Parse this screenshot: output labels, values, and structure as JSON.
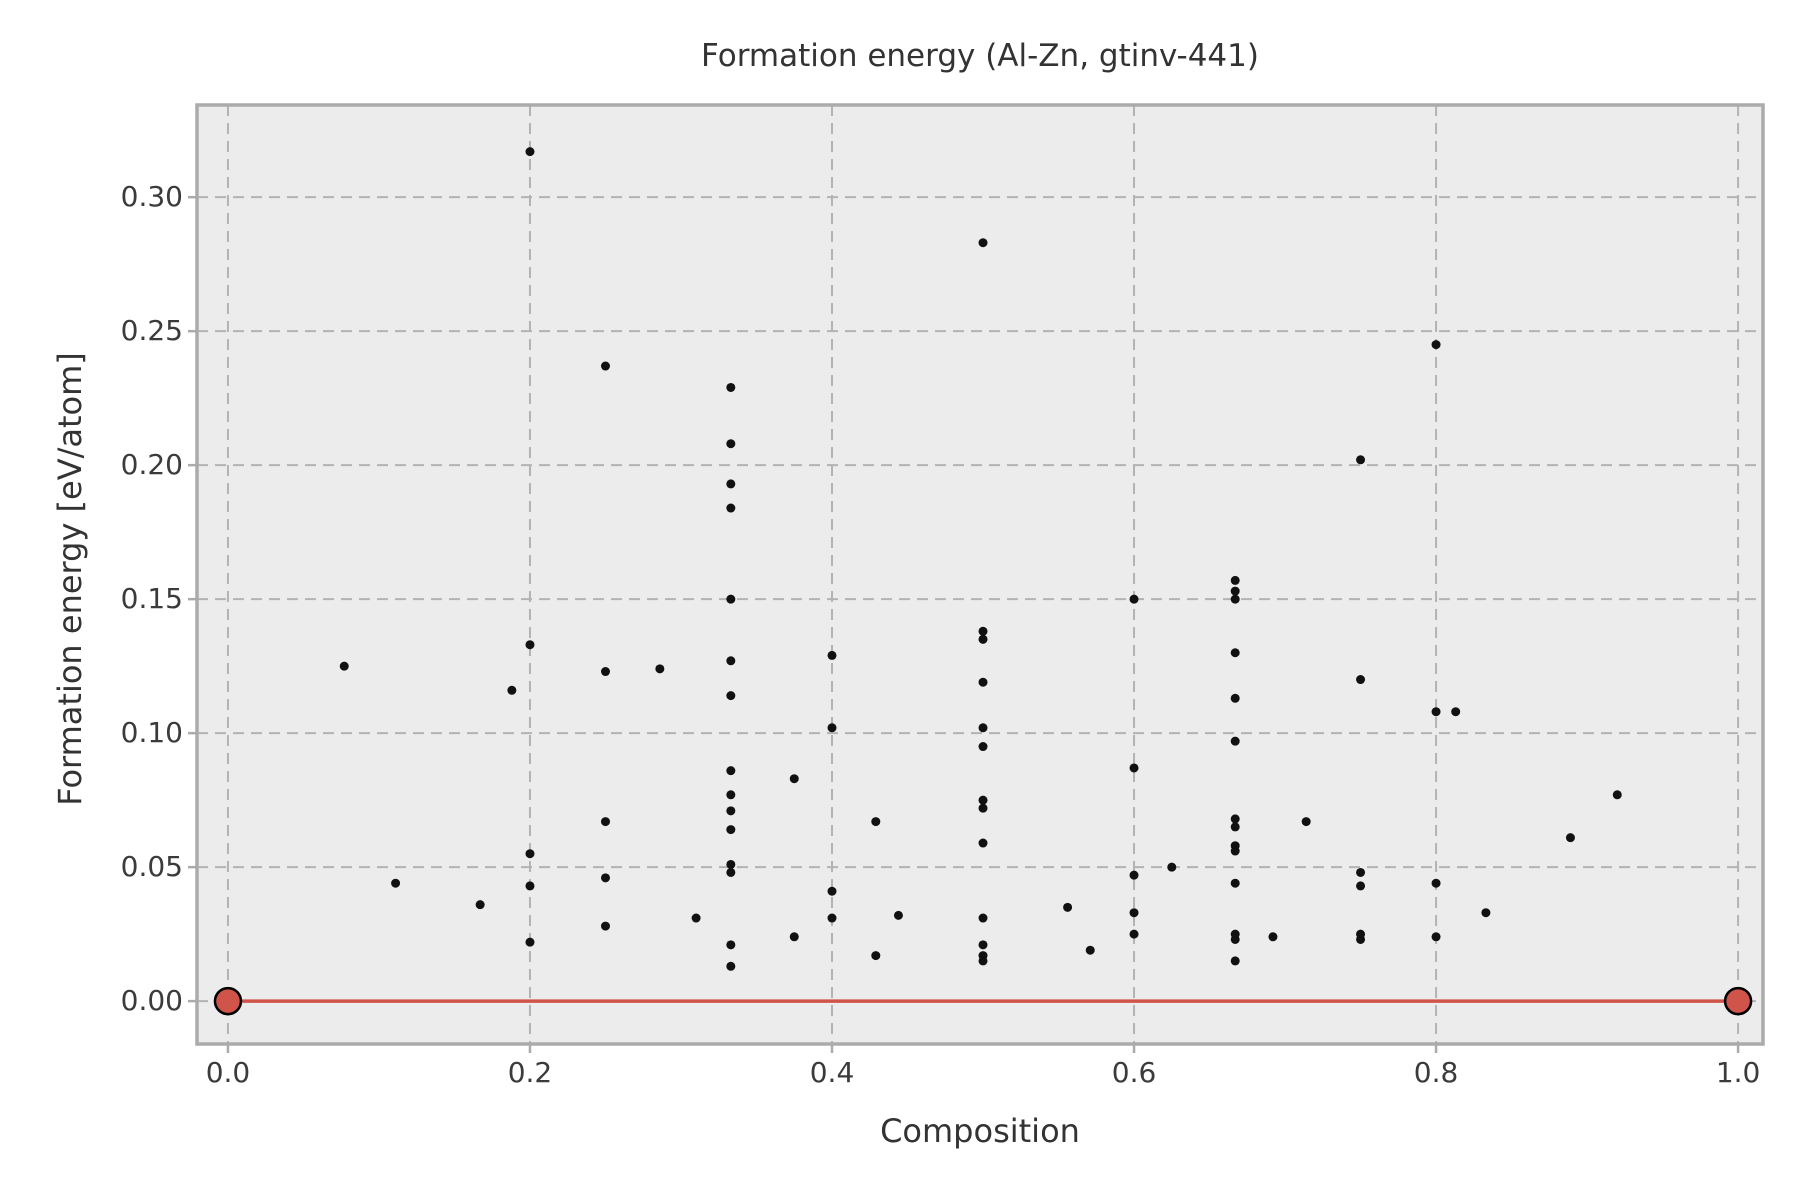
{
  "title": "Formation energy (Al-Zn, gtinv-441)",
  "chart_data": {
    "type": "scatter",
    "title": "Formation energy (Al-Zn, gtinv-441)",
    "xlabel": "Composition",
    "ylabel": "Formation energy [eV/atom]",
    "xlim": [
      -0.0205,
      1.0165
    ],
    "ylim": [
      -0.016,
      0.3344
    ],
    "grid": "dashed",
    "legend_position": "none",
    "xticks": {
      "values": [
        0.0,
        0.2,
        0.4,
        0.6,
        0.8,
        1.0
      ],
      "labels": [
        "0.0",
        "0.2",
        "0.4",
        "0.6",
        "0.8",
        "1.0"
      ]
    },
    "yticks": {
      "values": [
        0.0,
        0.05,
        0.1,
        0.15,
        0.2,
        0.25,
        0.3
      ],
      "labels": [
        "0.00",
        "0.05",
        "0.10",
        "0.15",
        "0.20",
        "0.25",
        "0.30"
      ]
    },
    "colors": {
      "plot_background": "#ececec",
      "gridline": "#b3b3b3",
      "spine": "#ababab",
      "scatter": "#111111",
      "hull_line": "#d0544a",
      "hull_marker_fill": "#d0544a",
      "hull_marker_edge": "#000000",
      "text": "#333333"
    },
    "series": [
      {
        "name": "candidate-structures",
        "marker": "dot",
        "marker_radius": 4.5,
        "color": "#111111",
        "points": [
          [
            0.077,
            0.125
          ],
          [
            0.111,
            0.044
          ],
          [
            0.167,
            0.036
          ],
          [
            0.188,
            0.116
          ],
          [
            0.2,
            0.317
          ],
          [
            0.2,
            0.133
          ],
          [
            0.2,
            0.055
          ],
          [
            0.2,
            0.043
          ],
          [
            0.2,
            0.022
          ],
          [
            0.25,
            0.237
          ],
          [
            0.25,
            0.123
          ],
          [
            0.25,
            0.067
          ],
          [
            0.25,
            0.046
          ],
          [
            0.25,
            0.028
          ],
          [
            0.286,
            0.124
          ],
          [
            0.31,
            0.031
          ],
          [
            0.333,
            0.229
          ],
          [
            0.333,
            0.208
          ],
          [
            0.333,
            0.193
          ],
          [
            0.333,
            0.184
          ],
          [
            0.333,
            0.15
          ],
          [
            0.333,
            0.127
          ],
          [
            0.333,
            0.114
          ],
          [
            0.333,
            0.086
          ],
          [
            0.333,
            0.077
          ],
          [
            0.333,
            0.071
          ],
          [
            0.333,
            0.064
          ],
          [
            0.333,
            0.051
          ],
          [
            0.333,
            0.048
          ],
          [
            0.333,
            0.021
          ],
          [
            0.333,
            0.013
          ],
          [
            0.375,
            0.083
          ],
          [
            0.375,
            0.024
          ],
          [
            0.4,
            0.129
          ],
          [
            0.4,
            0.102
          ],
          [
            0.4,
            0.041
          ],
          [
            0.4,
            0.031
          ],
          [
            0.429,
            0.067
          ],
          [
            0.429,
            0.017
          ],
          [
            0.444,
            0.032
          ],
          [
            0.5,
            0.283
          ],
          [
            0.5,
            0.138
          ],
          [
            0.5,
            0.135
          ],
          [
            0.5,
            0.119
          ],
          [
            0.5,
            0.102
          ],
          [
            0.5,
            0.095
          ],
          [
            0.5,
            0.075
          ],
          [
            0.5,
            0.072
          ],
          [
            0.5,
            0.059
          ],
          [
            0.5,
            0.031
          ],
          [
            0.5,
            0.021
          ],
          [
            0.5,
            0.017
          ],
          [
            0.5,
            0.015
          ],
          [
            0.556,
            0.035
          ],
          [
            0.571,
            0.019
          ],
          [
            0.6,
            0.15
          ],
          [
            0.6,
            0.087
          ],
          [
            0.6,
            0.047
          ],
          [
            0.6,
            0.033
          ],
          [
            0.6,
            0.025
          ],
          [
            0.625,
            0.05
          ],
          [
            0.667,
            0.157
          ],
          [
            0.667,
            0.153
          ],
          [
            0.667,
            0.15
          ],
          [
            0.667,
            0.13
          ],
          [
            0.667,
            0.113
          ],
          [
            0.667,
            0.097
          ],
          [
            0.667,
            0.068
          ],
          [
            0.667,
            0.065
          ],
          [
            0.667,
            0.058
          ],
          [
            0.667,
            0.056
          ],
          [
            0.667,
            0.044
          ],
          [
            0.667,
            0.025
          ],
          [
            0.667,
            0.023
          ],
          [
            0.667,
            0.015
          ],
          [
            0.692,
            0.024
          ],
          [
            0.714,
            0.067
          ],
          [
            0.75,
            0.202
          ],
          [
            0.75,
            0.12
          ],
          [
            0.75,
            0.048
          ],
          [
            0.75,
            0.043
          ],
          [
            0.75,
            0.025
          ],
          [
            0.75,
            0.023
          ],
          [
            0.8,
            0.245
          ],
          [
            0.8,
            0.108
          ],
          [
            0.8,
            0.044
          ],
          [
            0.8,
            0.024
          ],
          [
            0.813,
            0.108
          ],
          [
            0.833,
            0.033
          ],
          [
            0.889,
            0.061
          ],
          [
            0.92,
            0.077
          ]
        ]
      },
      {
        "name": "convex-hull",
        "marker": "circle-outlined",
        "marker_radius": 13,
        "color": "#d0544a",
        "edge_color": "#000000",
        "line": true,
        "line_width": 3.5,
        "points": [
          [
            0.0,
            0.0
          ],
          [
            1.0,
            0.0
          ]
        ]
      }
    ]
  },
  "layout_note_values_visible_only": true
}
